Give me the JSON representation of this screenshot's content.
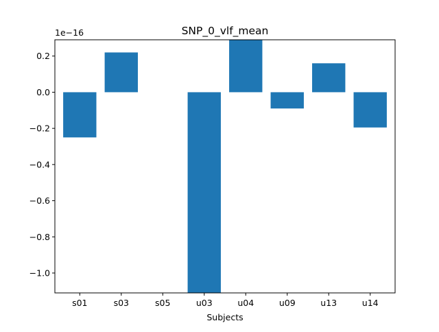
{
  "chart_data": {
    "type": "bar",
    "title": "SNP_0_vlf_mean",
    "xlabel": "Subjects",
    "ylabel": "",
    "offset_label": "1e−16",
    "scale_exponent": -16,
    "categories": [
      "s01",
      "s03",
      "s05",
      "u03",
      "u04",
      "u09",
      "u13",
      "u14"
    ],
    "values": [
      -0.25,
      0.22,
      0.0,
      -1.11,
      0.29,
      -0.09,
      0.16,
      -0.195
    ],
    "ylim": [
      -1.11,
      0.29
    ],
    "yticks": [
      -1.0,
      -0.8,
      -0.6,
      -0.4,
      -0.2,
      0.0,
      0.2
    ],
    "ytick_labels": [
      "−1.0",
      "−0.8",
      "−0.6",
      "−0.4",
      "−0.2",
      "0.0",
      "0.2"
    ],
    "grid": false,
    "legend": "none",
    "bar_color": "#1f77b4"
  }
}
